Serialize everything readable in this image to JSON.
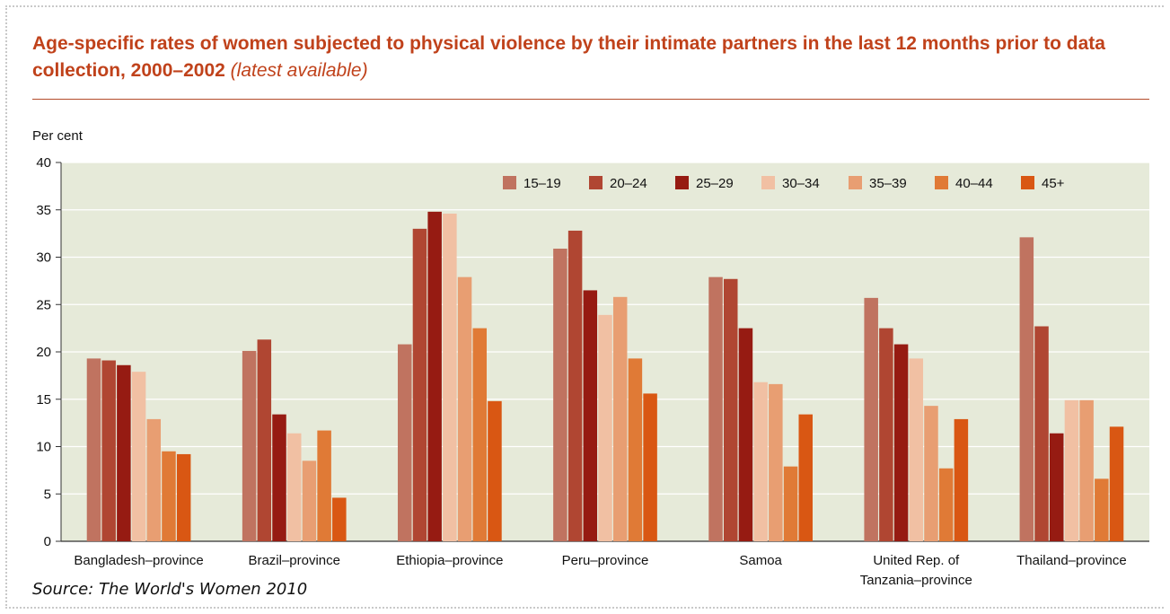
{
  "title": {
    "main": "Age-specific rates of women subjected to physical violence by their intimate partners in the last 12 months prior to data collection, 2000–2002",
    "qualifier": "(latest available)"
  },
  "source": "Source: The World's Women 2010",
  "chart_data": {
    "type": "bar",
    "ylabel": "Per cent",
    "ylim": [
      0,
      40
    ],
    "yticks": [
      0,
      5,
      10,
      15,
      20,
      25,
      30,
      35,
      40
    ],
    "grid": true,
    "legend_position": "top-right",
    "categories": [
      [
        "Bangladesh–province"
      ],
      [
        "Brazil–province"
      ],
      [
        "Ethiopia–province"
      ],
      [
        "Peru–province"
      ],
      [
        "Samoa"
      ],
      [
        "United Rep. of",
        "Tanzania–province"
      ],
      [
        "Thailand–province"
      ]
    ],
    "series": [
      {
        "name": "15–19",
        "color": "#c07360",
        "values": [
          19.3,
          20.1,
          20.8,
          30.9,
          27.9,
          25.7,
          32.1
        ]
      },
      {
        "name": "20–24",
        "color": "#b04632",
        "values": [
          19.1,
          21.3,
          33.0,
          32.8,
          27.7,
          22.5,
          22.7
        ]
      },
      {
        "name": "25–29",
        "color": "#961b12",
        "values": [
          18.6,
          13.4,
          34.8,
          26.5,
          22.5,
          20.8,
          11.4
        ]
      },
      {
        "name": "30–34",
        "color": "#f1c0a3",
        "values": [
          17.9,
          11.4,
          34.6,
          23.9,
          16.8,
          19.3,
          14.9
        ]
      },
      {
        "name": "35–39",
        "color": "#e89e72",
        "values": [
          12.9,
          8.5,
          27.9,
          25.8,
          16.6,
          14.3,
          14.9
        ]
      },
      {
        "name": "40–44",
        "color": "#e07a36",
        "values": [
          9.5,
          11.7,
          22.5,
          19.3,
          7.9,
          7.7,
          6.6
        ]
      },
      {
        "name": "45+",
        "color": "#d95713",
        "values": [
          9.2,
          4.6,
          14.8,
          15.6,
          13.4,
          12.9,
          12.1
        ]
      }
    ]
  },
  "colors": {
    "title": "#c0421b",
    "plot_background": "#e6ead9",
    "grid": "#ffffff"
  }
}
